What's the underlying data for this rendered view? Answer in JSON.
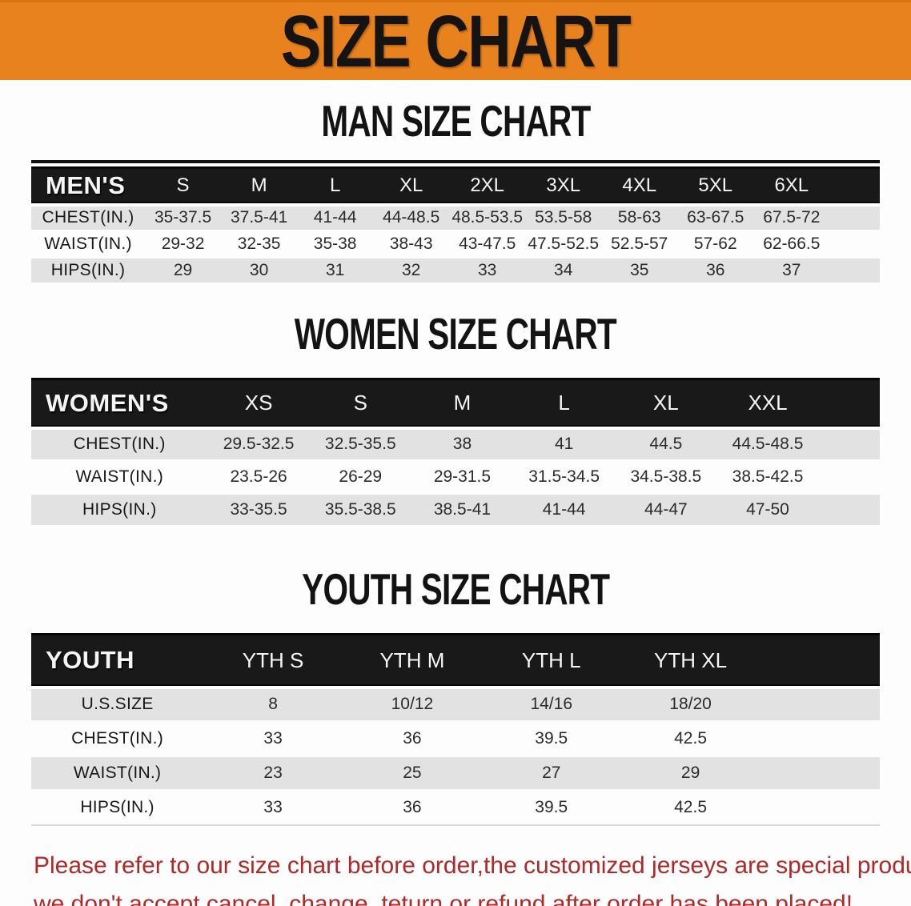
{
  "page": {
    "banner_title": "SIZE CHART",
    "footer_line1": "Please refer to our size chart before order,the customized jerseys are special products,",
    "footer_line2": "we don't accept cancel, change, teturn or refund after order has been placed!"
  },
  "colors": {
    "banner_bg": "#E8821E",
    "header_bar_bg": "#191919",
    "row_alt_bg": "#E2E2E2",
    "footer_text": "#B02828"
  },
  "tables": [
    {
      "id": "mens",
      "heading": "MAN SIZE CHART",
      "label": "MEN'S",
      "columns": [
        "S",
        "M",
        "L",
        "XL",
        "2XL",
        "3XL",
        "4XL",
        "5XL",
        "6XL"
      ],
      "rows": [
        {
          "label": "CHEST(IN.)",
          "values": [
            "35-37.5",
            "37.5-41",
            "41-44",
            "44-48.5",
            "48.5-53.5",
            "53.5-58",
            "58-63",
            "63-67.5",
            "67.5-72"
          ]
        },
        {
          "label": "WAIST(IN.)",
          "values": [
            "29-32",
            "32-35",
            "35-38",
            "38-43",
            "43-47.5",
            "47.5-52.5",
            "52.5-57",
            "57-62",
            "62-66.5"
          ]
        },
        {
          "label": "HIPS(IN.)",
          "values": [
            "29",
            "30",
            "31",
            "32",
            "33",
            "34",
            "35",
            "36",
            "37"
          ]
        }
      ]
    },
    {
      "id": "womens",
      "heading": "WOMEN SIZE CHART",
      "label": "WOMEN'S",
      "columns": [
        "XS",
        "S",
        "M",
        "L",
        "XL",
        "XXL"
      ],
      "rows": [
        {
          "label": "CHEST(IN.)",
          "values": [
            "29.5-32.5",
            "32.5-35.5",
            "38",
            "41",
            "44.5",
            "44.5-48.5"
          ]
        },
        {
          "label": "WAIST(IN.)",
          "values": [
            "23.5-26",
            "26-29",
            "29-31.5",
            "31.5-34.5",
            "34.5-38.5",
            "38.5-42.5"
          ]
        },
        {
          "label": "HIPS(IN.)",
          "values": [
            "33-35.5",
            "35.5-38.5",
            "38.5-41",
            "41-44",
            "44-47",
            "47-50"
          ]
        }
      ]
    },
    {
      "id": "youth",
      "heading": "YOUTH SIZE CHART",
      "label": "YOUTH",
      "columns": [
        "YTH S",
        "YTH M",
        "YTH L",
        "YTH XL"
      ],
      "rows": [
        {
          "label": "U.S.SIZE",
          "values": [
            "8",
            "10/12",
            "14/16",
            "18/20"
          ]
        },
        {
          "label": "CHEST(IN.)",
          "values": [
            "33",
            "36",
            "39.5",
            "42.5"
          ]
        },
        {
          "label": "WAIST(IN.)",
          "values": [
            "23",
            "25",
            "27",
            "29"
          ]
        },
        {
          "label": "HIPS(IN.)",
          "values": [
            "33",
            "36",
            "39.5",
            "42.5"
          ]
        }
      ]
    }
  ]
}
